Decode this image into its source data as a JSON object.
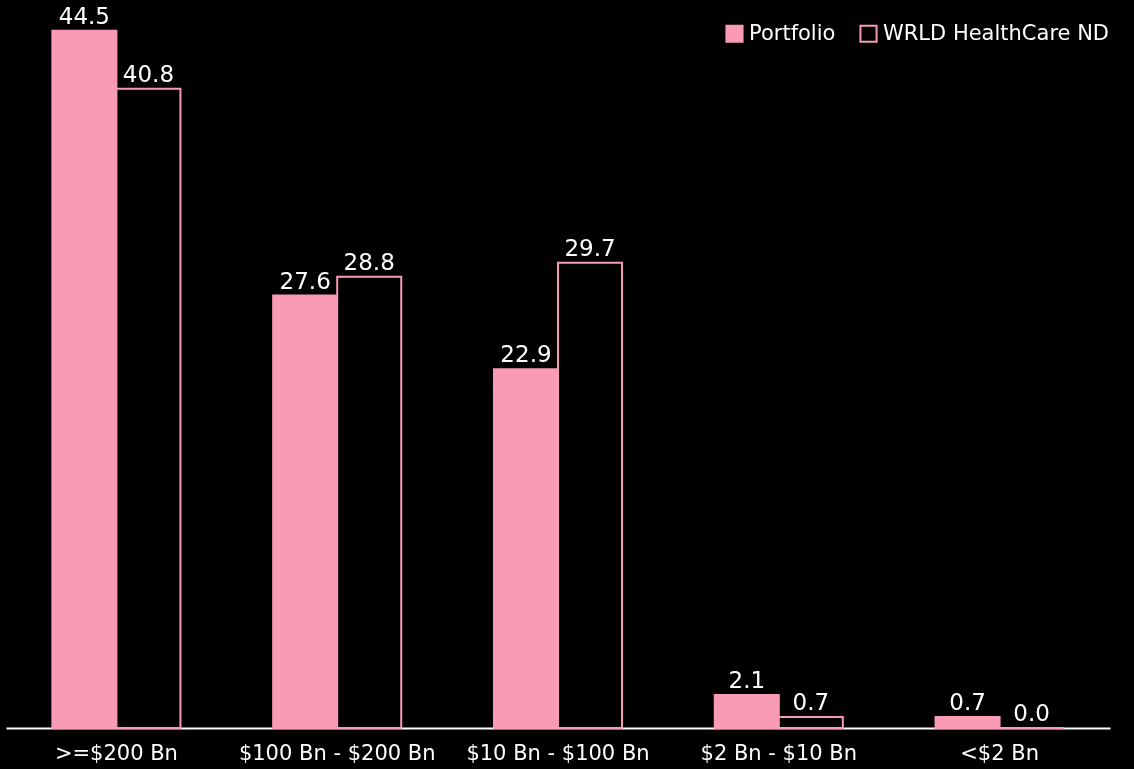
{
  "chart_data": {
    "type": "bar",
    "categories": [
      ">=$200 Bn",
      "$100 Bn - $200 Bn",
      "$10 Bn - $100 Bn",
      "$2 Bn - $10 Bn",
      "<$2 Bn"
    ],
    "series": [
      {
        "name": "Portfolio",
        "color": "#f99bb5",
        "values": [
          44.5,
          27.6,
          22.9,
          2.1,
          0.7
        ],
        "value_labels": [
          "44.5",
          "27.6",
          "22.9",
          "2.1",
          "0.7"
        ]
      },
      {
        "name": "WRLD HealthCare ND",
        "color": "#f99bb5",
        "values": [
          40.8,
          28.8,
          29.7,
          0.7,
          0.0
        ],
        "value_labels": [
          "40.8",
          "28.8",
          "29.7",
          "0.7",
          "0.0"
        ]
      }
    ],
    "legend": "top right",
    "grid": false,
    "tick_labels": "x"
  }
}
